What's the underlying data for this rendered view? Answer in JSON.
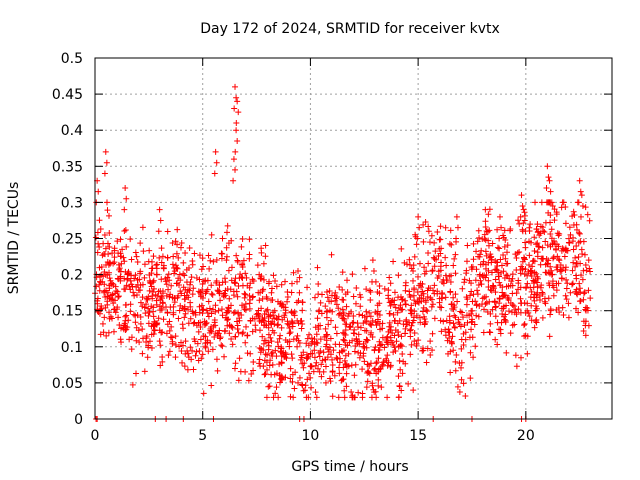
{
  "chart_data": {
    "type": "scatter",
    "title": "Day 172 of 2024, SRMTID for receiver kvtx",
    "xlabel": "GPS time / hours",
    "ylabel": "SRMTID / TECUs",
    "xlim": [
      0,
      24
    ],
    "ylim": [
      0,
      0.5
    ],
    "x_ticks": [
      0,
      5,
      10,
      15,
      20
    ],
    "x_tick_labels": [
      "0",
      "5",
      "10",
      "15",
      "20"
    ],
    "y_ticks": [
      0,
      0.05,
      0.1,
      0.15,
      0.2,
      0.25,
      0.3,
      0.35,
      0.4,
      0.45,
      0.5
    ],
    "y_tick_labels": [
      "0",
      "0.05",
      "0.1",
      "0.15",
      "0.2",
      "0.25",
      "0.3",
      "0.35",
      "0.4",
      "0.45",
      "0.5"
    ],
    "grid": true,
    "marker": "+",
    "color": "#ff0000",
    "trend": {
      "hours": [
        0,
        1,
        2,
        3,
        4,
        5,
        6,
        7,
        8,
        9,
        10,
        11,
        12,
        13,
        14,
        15,
        16,
        17,
        18,
        19,
        20,
        21,
        22,
        23
      ],
      "srmtid_tecu": [
        0.21,
        0.19,
        0.16,
        0.17,
        0.16,
        0.14,
        0.17,
        0.16,
        0.12,
        0.11,
        0.09,
        0.12,
        0.1,
        0.11,
        0.12,
        0.16,
        0.2,
        0.12,
        0.21,
        0.19,
        0.19,
        0.22,
        0.21,
        0.19
      ]
    },
    "spread_tecu": 0.045,
    "points_per_hour": 90,
    "spikes": [
      {
        "x": 0.1,
        "y": 0.33
      },
      {
        "x": 0.5,
        "y": 0.37
      },
      {
        "x": 1.4,
        "y": 0.32
      },
      {
        "x": 3.0,
        "y": 0.29
      },
      {
        "x": 5.6,
        "y": 0.37
      },
      {
        "x": 6.5,
        "y": 0.46
      },
      {
        "x": 6.6,
        "y": 0.44
      },
      {
        "x": 6.55,
        "y": 0.4
      },
      {
        "x": 6.45,
        "y": 0.36
      },
      {
        "x": 12.9,
        "y": 0.22
      },
      {
        "x": 15.0,
        "y": 0.28
      },
      {
        "x": 15.5,
        "y": 0.26
      },
      {
        "x": 16.8,
        "y": 0.28
      },
      {
        "x": 18.8,
        "y": 0.28
      },
      {
        "x": 19.8,
        "y": 0.31
      },
      {
        "x": 19.9,
        "y": 0.29
      },
      {
        "x": 21.0,
        "y": 0.35
      },
      {
        "x": 21.1,
        "y": 0.33
      },
      {
        "x": 22.5,
        "y": 0.33
      },
      {
        "x": 22.6,
        "y": 0.31
      }
    ],
    "zero_markers": [
      0.05,
      0.1,
      2.8,
      3.3,
      4.1,
      5.5,
      9.5,
      9.7,
      15.7,
      17.5,
      19.8,
      20.0
    ]
  }
}
